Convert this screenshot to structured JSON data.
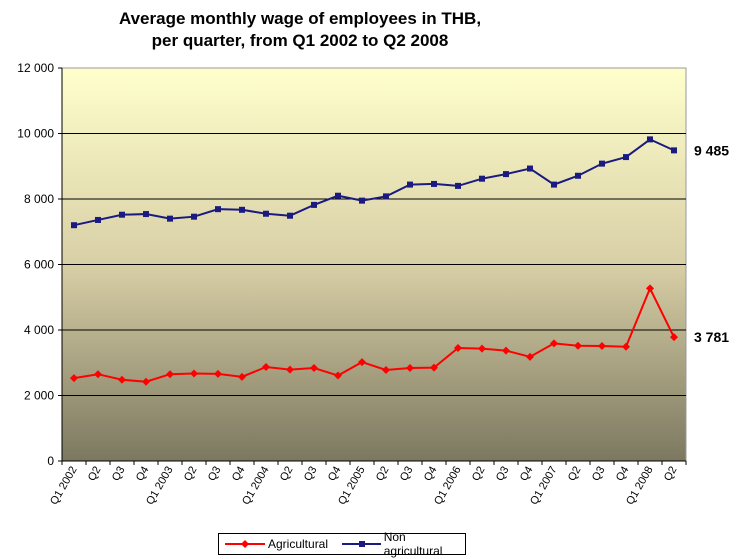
{
  "chart_data": {
    "type": "line",
    "title_line1": "Average monthly wage of employees in THB,",
    "title_line2": "per quarter, from Q1 2002 to Q2 2008",
    "xlabel": "",
    "ylabel": "",
    "ylim": [
      0,
      12000
    ],
    "yticks": [
      0,
      2000,
      4000,
      6000,
      8000,
      10000,
      12000
    ],
    "ytick_labels": [
      "0",
      "2 000",
      "4 000",
      "6 000",
      "8 000",
      "10 000",
      "12 000"
    ],
    "grid": "horizontal",
    "legend_position": "bottom",
    "categories": [
      "Q1 2002",
      "Q2",
      "Q3",
      "Q4",
      "Q1 2003",
      "Q2",
      "Q3",
      "Q4",
      "Q1 2004",
      "Q2",
      "Q3",
      "Q4",
      "Q1 2005",
      "Q2",
      "Q3",
      "Q4",
      "Q1 2006",
      "Q2",
      "Q3",
      "Q4",
      "Q1 2007",
      "Q2",
      "Q3",
      "Q4",
      "Q1 2008",
      "Q2"
    ],
    "series": [
      {
        "name": "Agricultural",
        "color": "#ff0000",
        "marker": "diamond",
        "values": [
          2530,
          2650,
          2480,
          2420,
          2650,
          2670,
          2660,
          2570,
          2870,
          2790,
          2840,
          2610,
          3020,
          2780,
          2840,
          2850,
          3450,
          3430,
          3370,
          3180,
          3590,
          3520,
          3510,
          3490,
          5270,
          3781
        ],
        "end_label": "3 781"
      },
      {
        "name": "Non agricultural",
        "color": "#1a1a80",
        "marker": "square",
        "values": [
          7200,
          7360,
          7520,
          7540,
          7400,
          7460,
          7690,
          7670,
          7550,
          7490,
          7820,
          8100,
          7950,
          8080,
          8440,
          8460,
          8400,
          8620,
          8760,
          8930,
          8440,
          8710,
          9080,
          9280,
          9820,
          9485
        ],
        "end_label": "9 485"
      }
    ]
  }
}
